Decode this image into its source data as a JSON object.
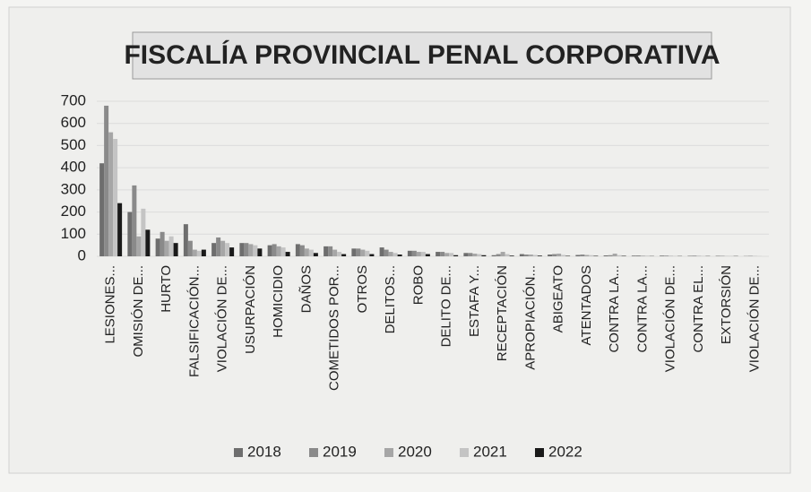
{
  "chart_data": {
    "type": "bar",
    "title": "FISCALÍA PROVINCIAL PENAL CORPORATIVA",
    "categories": [
      "LESIONES...",
      "OMISIÓN DE...",
      "HURTO",
      "FALSIFICACIÓN...",
      "VIOLACIÓN DE...",
      "USURPACIÓN",
      "HOMICIDIO",
      "DAÑOS",
      "COMETIDOS POR...",
      "OTROS",
      "DELITOS...",
      "ROBO",
      "DELITO DE...",
      "ESTAFA Y...",
      "RECEPTACIÓN",
      "APROPIACIÓN...",
      "ABIGEATO",
      "ATENTADOS",
      "CONTRA LA...",
      "CONTRA LA...",
      "VIOLACIÓN DE...",
      "CONTRA EL...",
      "EXTORSIÓN",
      "VIOLACIÓN DE..."
    ],
    "series": [
      {
        "name": "2018",
        "color": "#6e6e6e",
        "values": [
          420,
          200,
          80,
          145,
          60,
          60,
          50,
          55,
          45,
          35,
          40,
          25,
          20,
          15,
          5,
          10,
          8,
          6,
          4,
          3,
          3,
          2,
          2,
          1
        ]
      },
      {
        "name": "2019",
        "color": "#8a8a8a",
        "values": [
          680,
          320,
          110,
          70,
          85,
          60,
          55,
          50,
          45,
          35,
          30,
          25,
          20,
          15,
          10,
          8,
          10,
          8,
          5,
          4,
          3,
          3,
          2,
          2
        ]
      },
      {
        "name": "2020",
        "color": "#a6a6a6",
        "values": [
          560,
          90,
          70,
          30,
          70,
          55,
          45,
          35,
          30,
          30,
          20,
          20,
          15,
          12,
          20,
          8,
          12,
          6,
          12,
          3,
          2,
          2,
          1,
          1
        ]
      },
      {
        "name": "2021",
        "color": "#c4c4c4",
        "values": [
          530,
          215,
          90,
          25,
          60,
          50,
          40,
          30,
          20,
          25,
          15,
          20,
          15,
          10,
          10,
          6,
          6,
          5,
          5,
          3,
          2,
          2,
          2,
          1
        ]
      },
      {
        "name": "2022",
        "color": "#1a1a1a",
        "values": [
          240,
          120,
          60,
          30,
          40,
          35,
          20,
          15,
          10,
          10,
          8,
          10,
          5,
          5,
          3,
          3,
          2,
          2,
          2,
          1,
          1,
          1,
          1,
          0
        ]
      }
    ],
    "ylim": [
      0,
      700
    ],
    "yticks": [
      0,
      100,
      200,
      300,
      400,
      500,
      600,
      700
    ],
    "grid": true,
    "legend": "bottom"
  }
}
